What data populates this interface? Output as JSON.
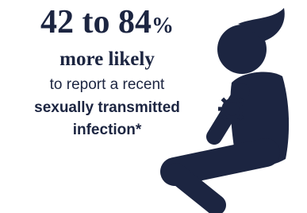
{
  "headline": {
    "range": "42 to 84",
    "unit": "%"
  },
  "subhead": "more likely",
  "body": {
    "line1": "to report a recent",
    "line2": "sexually transmitted",
    "line3": "infection*"
  }
}
